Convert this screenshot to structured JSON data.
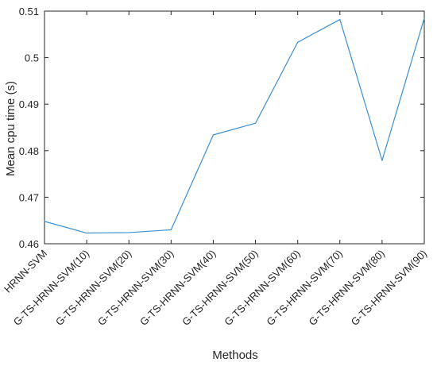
{
  "chart_data": {
    "type": "line",
    "title": "",
    "xlabel": "Methods",
    "ylabel": "Mean cpu time (s)",
    "categories": [
      "HRNN-SVM",
      "G-TS-HRNN-SVM(10)",
      "G-TS-HRNN-SVM(20)",
      "G-TS-HRNN-SVM(30)",
      "G-TS-HRNN-SVM(40)",
      "G-TS-HRNN-SVM(50)",
      "G-TS-HRNN-SVM(60)",
      "G-TS-HRNN-SVM(70)",
      "G-TS-HRNN-SVM(80)",
      "G-TS-HRNN-SVM(90)"
    ],
    "series": [
      {
        "values": [
          0.4648,
          0.4623,
          0.4624,
          0.463,
          0.4834,
          0.4859,
          0.5033,
          0.5082,
          0.4779,
          0.5085
        ]
      }
    ],
    "ylim": [
      0.46,
      0.51
    ],
    "yticks": [
      0.46,
      0.47,
      0.48,
      0.49,
      0.5,
      0.51
    ],
    "ytick_labels": [
      "0.46",
      "0.47",
      "0.48",
      "0.49",
      "0.5",
      "0.51"
    ],
    "grid": false,
    "line_color": "#3a8fd0",
    "axis_color": "#262626"
  }
}
